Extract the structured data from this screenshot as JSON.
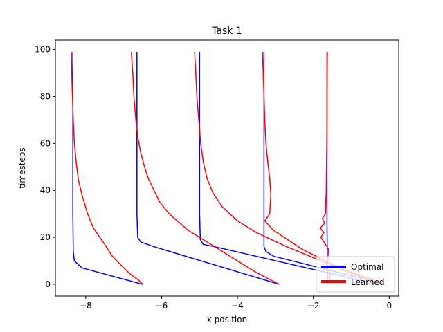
{
  "chart_data": {
    "type": "line",
    "title": "Task 1",
    "xlabel": "x position",
    "ylabel": "timesteps",
    "xlim": [
      -8.8,
      0.25
    ],
    "ylim": [
      -5,
      104
    ],
    "xticks": [
      -8,
      -6,
      -4,
      -2,
      0
    ],
    "xtick_labels": [
      "−8",
      "−6",
      "−4",
      "−2",
      "0"
    ],
    "yticks": [
      0,
      20,
      40,
      60,
      80,
      100
    ],
    "ytick_labels": [
      "0",
      "20",
      "40",
      "60",
      "80",
      "100"
    ],
    "grid": false,
    "legend_position": "bottom-right",
    "series_colors": {
      "Optimal": "#0000ff",
      "Learned": "#ff0000"
    },
    "legend": [
      {
        "label": "Optimal",
        "color": "#0000ff"
      },
      {
        "label": "Learned",
        "color": "#ff0000"
      }
    ],
    "series": [
      {
        "name": "Optimal",
        "group": 1,
        "x": [
          -6.5,
          -8.1,
          -8.3,
          -8.33,
          -8.34,
          -8.34
        ],
        "y": [
          0,
          7,
          10,
          14,
          30,
          99
        ]
      },
      {
        "name": "Optimal",
        "group": 2,
        "x": [
          -2.9,
          -6.2,
          -6.55,
          -6.63,
          -6.65,
          -6.65
        ],
        "y": [
          0,
          16,
          18,
          20,
          30,
          99
        ]
      },
      {
        "name": "Optimal",
        "group": 3,
        "x": [
          -0.3,
          -4.6,
          -4.9,
          -4.98,
          -5.0,
          -5.0
        ],
        "y": [
          0,
          16,
          17,
          19,
          30,
          99
        ]
      },
      {
        "name": "Optimal",
        "group": 4,
        "x": [
          -0.1,
          -3.05,
          -3.25,
          -3.3,
          -3.3,
          -3.3
        ],
        "y": [
          0,
          12,
          14,
          16,
          30,
          99
        ]
      },
      {
        "name": "Optimal",
        "group": 5,
        "x": [
          -1.62,
          -1.63,
          -1.64,
          -1.64
        ],
        "y": [
          0,
          10,
          25,
          99
        ]
      },
      {
        "name": "Learned",
        "group": 1,
        "x": [
          -6.5,
          -6.62,
          -6.8,
          -7.0,
          -7.3,
          -7.5,
          -7.8,
          -7.95,
          -8.1,
          -8.2,
          -8.25,
          -8.3,
          -8.33,
          -8.36,
          -8.38
        ],
        "y": [
          0,
          2,
          4,
          7,
          12,
          17,
          24,
          30,
          38,
          45,
          52,
          60,
          70,
          85,
          99
        ]
      },
      {
        "name": "Learned",
        "group": 2,
        "x": [
          -2.9,
          -3.5,
          -4.0,
          -4.6,
          -5.3,
          -5.8,
          -6.05,
          -6.2,
          -6.35,
          -6.45,
          -6.55,
          -6.62,
          -6.68,
          -6.73,
          -6.76,
          -6.8
        ],
        "y": [
          0,
          5,
          10,
          16,
          23,
          30,
          35,
          40,
          45,
          50,
          56,
          62,
          70,
          80,
          90,
          99
        ]
      },
      {
        "name": "Learned",
        "group": 3,
        "x": [
          -0.15,
          -0.8,
          -1.8,
          -2.7,
          -3.5,
          -4.0,
          -4.4,
          -4.65,
          -4.8,
          -4.9,
          -4.97,
          -5.02,
          -5.07,
          -5.1,
          -5.13
        ],
        "y": [
          0,
          4,
          10,
          16,
          22,
          27,
          33,
          39,
          45,
          52,
          60,
          70,
          80,
          90,
          99
        ]
      },
      {
        "name": "Learned",
        "group": 4,
        "x": [
          -0.25,
          -1.2,
          -2.3,
          -3.05,
          -3.28,
          -3.15,
          -3.12,
          -3.15,
          -3.2,
          -3.25,
          -3.28,
          -3.3,
          -3.32,
          -3.34
        ],
        "y": [
          0,
          6,
          15,
          23,
          27,
          30,
          38,
          45,
          52,
          60,
          70,
          80,
          90,
          99
        ]
      },
      {
        "name": "Learned",
        "group": 5,
        "x": [
          -1.55,
          -1.6,
          -1.8,
          -1.72,
          -1.82,
          -1.7,
          -1.76,
          -1.68,
          -1.66,
          -1.65,
          -1.64,
          -1.64,
          -1.63
        ],
        "y": [
          0,
          15,
          20,
          22,
          24,
          26,
          28,
          30,
          40,
          55,
          70,
          85,
          99
        ]
      }
    ]
  }
}
